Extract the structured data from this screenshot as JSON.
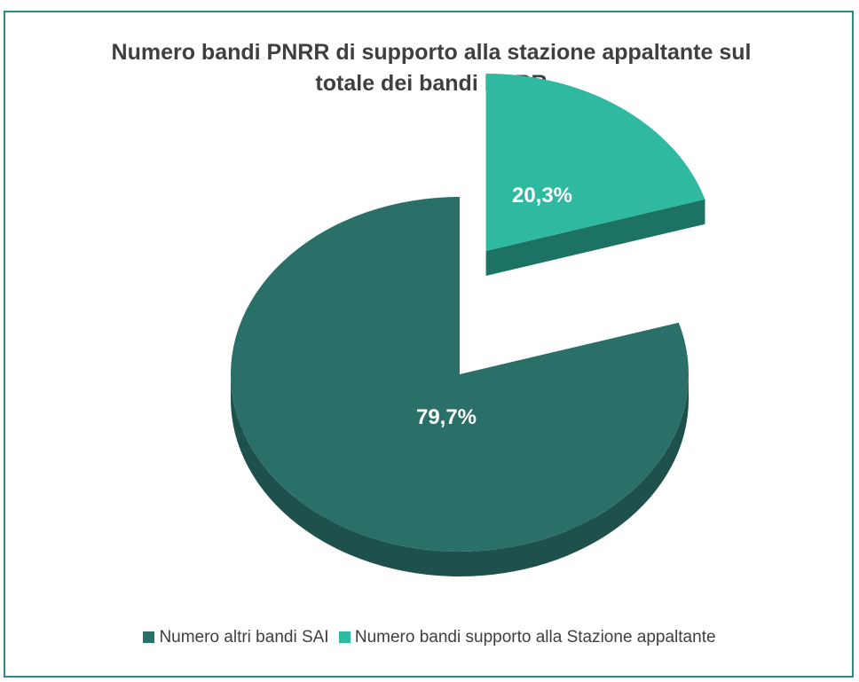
{
  "chart_data": {
    "type": "pie",
    "title_lines": [
      "Numero bandi PNRR di supporto alla stazione appaltante sul",
      "totale dei bandi PNRR"
    ],
    "slices": [
      {
        "label": "Numero altri bandi SAI",
        "value": 79.7,
        "display": "79,7%",
        "color": "#2a7069"
      },
      {
        "label": "Numero bandi supporto alla Stazione appaltante",
        "value": 20.3,
        "display": "20,3%",
        "color": "#2fb9a0"
      }
    ],
    "legend_position": "bottom",
    "style": "3d-exploded"
  }
}
